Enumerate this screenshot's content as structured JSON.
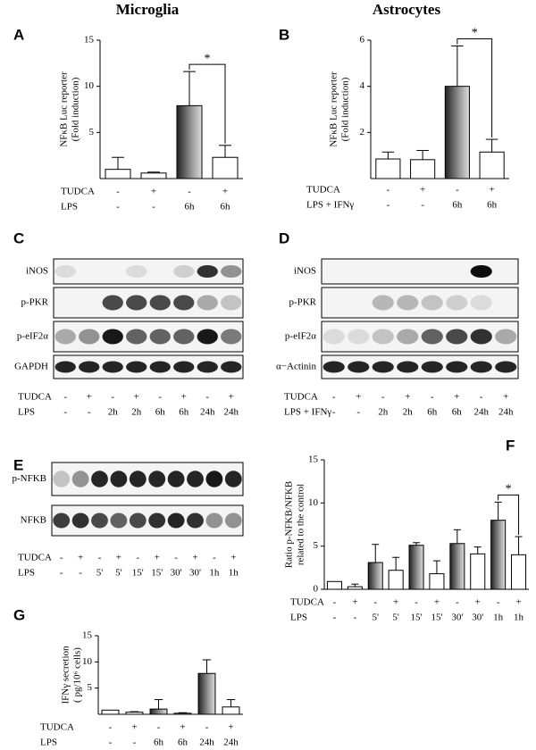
{
  "headers": [
    "Microglia",
    "Astrocytes"
  ],
  "chart_data": [
    {
      "type": "bar",
      "panel": "A",
      "y_label": [
        "NFκB Luc reporter",
        "(Fold induction)"
      ],
      "ylim": [
        0,
        15
      ],
      "yticks": [
        5,
        10,
        15
      ],
      "values": [
        1.0,
        0.6,
        7.9,
        2.3
      ],
      "errors": [
        1.3,
        0.1,
        3.7,
        1.3
      ],
      "conditions": [
        {
          "label": "TUDCA",
          "entries": [
            "-",
            "+",
            "-",
            "+"
          ]
        },
        {
          "label": "LPS",
          "entries": [
            "-",
            "-",
            "6h",
            "6h"
          ]
        }
      ],
      "annotation": "*"
    },
    {
      "type": "bar",
      "panel": "B",
      "y_label": [
        "NFκB Luc reporter",
        "(Fold induction)"
      ],
      "ylim": [
        0,
        6
      ],
      "yticks": [
        2,
        4,
        6
      ],
      "values": [
        0.85,
        0.82,
        4.0,
        1.15
      ],
      "errors": [
        0.3,
        0.4,
        1.75,
        0.55
      ],
      "conditions": [
        {
          "label": "TUDCA",
          "entries": [
            "-",
            "+",
            "-",
            "+"
          ]
        },
        {
          "label": "LPS + IFNγ",
          "entries": [
            "-",
            "-",
            "6h",
            "6h"
          ]
        }
      ],
      "annotation": "*"
    },
    {
      "type": "bar",
      "panel": "F",
      "y_label": [
        "Ratio p-NFKB/NFKB",
        "related to the control"
      ],
      "ylim": [
        0,
        15
      ],
      "yticks": [
        0,
        5,
        10,
        15
      ],
      "values": [
        0.9,
        0.3,
        3.1,
        2.2,
        5.1,
        1.8,
        5.3,
        4.1,
        8.0,
        4.0
      ],
      "errors": [
        0,
        0.3,
        2.1,
        1.5,
        0.3,
        1.5,
        1.6,
        0.8,
        2.1,
        2.1
      ],
      "conditions": [
        {
          "label": "TUDCA",
          "entries": [
            "-",
            "+",
            "-",
            "+",
            "-",
            "+",
            "-",
            "+",
            "-",
            "+"
          ]
        },
        {
          "label": "LPS",
          "entries": [
            "-",
            "-",
            "5'",
            "5'",
            "15'",
            "15'",
            "30'",
            "30'",
            "1h",
            "1h"
          ]
        }
      ],
      "annotation": "*"
    },
    {
      "type": "bar",
      "panel": "G",
      "y_label": [
        "IFNγ secretion",
        "( pg/10⁶ cells)"
      ],
      "ylim": [
        0,
        15
      ],
      "yticks": [
        5,
        10,
        15
      ],
      "values": [
        0.8,
        0.4,
        1.0,
        0.2,
        7.8,
        1.4
      ],
      "errors": [
        0,
        0.1,
        1.8,
        0.1,
        2.6,
        1.4
      ],
      "conditions": [
        {
          "label": "TUDCA",
          "entries": [
            "-",
            "+",
            "-",
            "+",
            "-",
            "+"
          ]
        },
        {
          "label": "LPS",
          "entries": [
            "-",
            "-",
            "6h",
            "6h",
            "24h",
            "24h"
          ]
        }
      ]
    }
  ],
  "blots": [
    {
      "panel": "C",
      "rows": [
        "iNOS",
        "p-PKR",
        "p-eIF2α",
        "GAPDH"
      ],
      "conditions": [
        {
          "label": "TUDCA",
          "entries": [
            "-",
            "+",
            "-",
            "+",
            "-",
            "+",
            "-",
            "+"
          ]
        },
        {
          "label": "LPS",
          "entries": [
            "-",
            "-",
            "2h",
            "2h",
            "6h",
            "6h",
            "24h",
            "24h"
          ]
        }
      ]
    },
    {
      "panel": "D",
      "rows": [
        "iNOS",
        "p-PKR",
        "p-eIF2α",
        "α−Actinin"
      ],
      "conditions": [
        {
          "label": "TUDCA",
          "entries": [
            "-",
            "+",
            "-",
            "+",
            "-",
            "+",
            "-",
            "+"
          ]
        },
        {
          "label": "LPS + IFNγ",
          "entries": [
            "-",
            "-",
            "2h",
            "2h",
            "6h",
            "6h",
            "24h",
            "24h"
          ]
        }
      ]
    },
    {
      "panel": "E",
      "rows": [
        "p-NFKB",
        "NFKB"
      ],
      "conditions": [
        {
          "label": "TUDCA",
          "entries": [
            "-",
            "+",
            "-",
            "+",
            "-",
            "+",
            "-",
            "+",
            "-",
            "+"
          ]
        },
        {
          "label": "LPS",
          "entries": [
            "-",
            "-",
            "5'",
            "5'",
            "15'",
            "15'",
            "30'",
            "30'",
            "1h",
            "1h"
          ]
        }
      ]
    }
  ]
}
